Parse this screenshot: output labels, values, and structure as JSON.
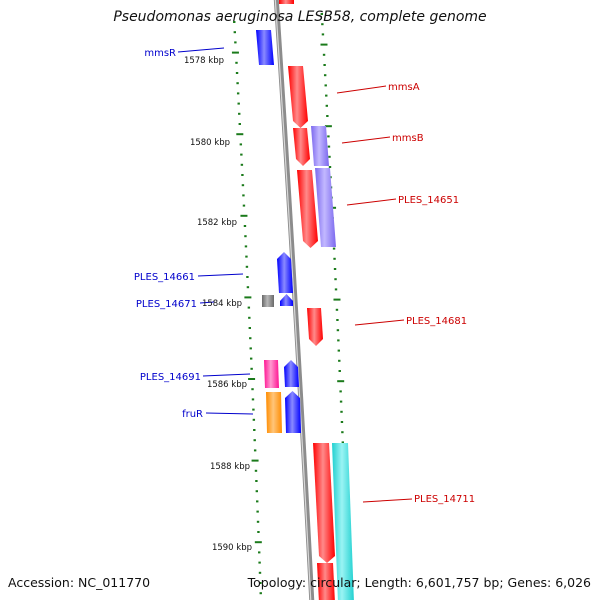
{
  "header": {
    "title": "Pseudomonas aeruginosa LESB58, complete genome"
  },
  "footer": {
    "accession": "Accession: NC_011770",
    "topology": "Topology: circular; Length: 6,601,757 bp; Genes: 6,026"
  },
  "map": {
    "scale_labels": [
      "1578 kbp",
      "1580 kbp",
      "1582 kbp",
      "1584 kbp",
      "1586 kbp",
      "1588 kbp",
      "1590 kbp"
    ],
    "genes_left": [
      {
        "name": "mmsR",
        "color": "#0000ff"
      },
      {
        "name": "PLES_14661",
        "color": "#0000ff"
      },
      {
        "name": "PLES_14671",
        "color": "#0000ff"
      },
      {
        "name": "PLES_14691",
        "color": "#0000ff"
      },
      {
        "name": "fruR",
        "color": "#0000ff"
      }
    ],
    "genes_right": [
      {
        "name": "mmsA",
        "color": "#ff0000"
      },
      {
        "name": "mmsB",
        "color": "#ff0000"
      },
      {
        "name": "PLES_14651",
        "color": "#ff0000"
      },
      {
        "name": "PLES_14681",
        "color": "#ff0000"
      },
      {
        "name": "PLES_14711",
        "color": "#ff0000"
      }
    ],
    "colors": {
      "blue": "#0000ff",
      "red": "#ff0000",
      "purple": "#7b68ee",
      "magenta": "#ff1493",
      "orange": "#ff8c00",
      "grey": "#696969",
      "cyan": "#20d0d0",
      "scale_tick": "#1a7a1a",
      "backbone": "#8c8c8c"
    }
  }
}
